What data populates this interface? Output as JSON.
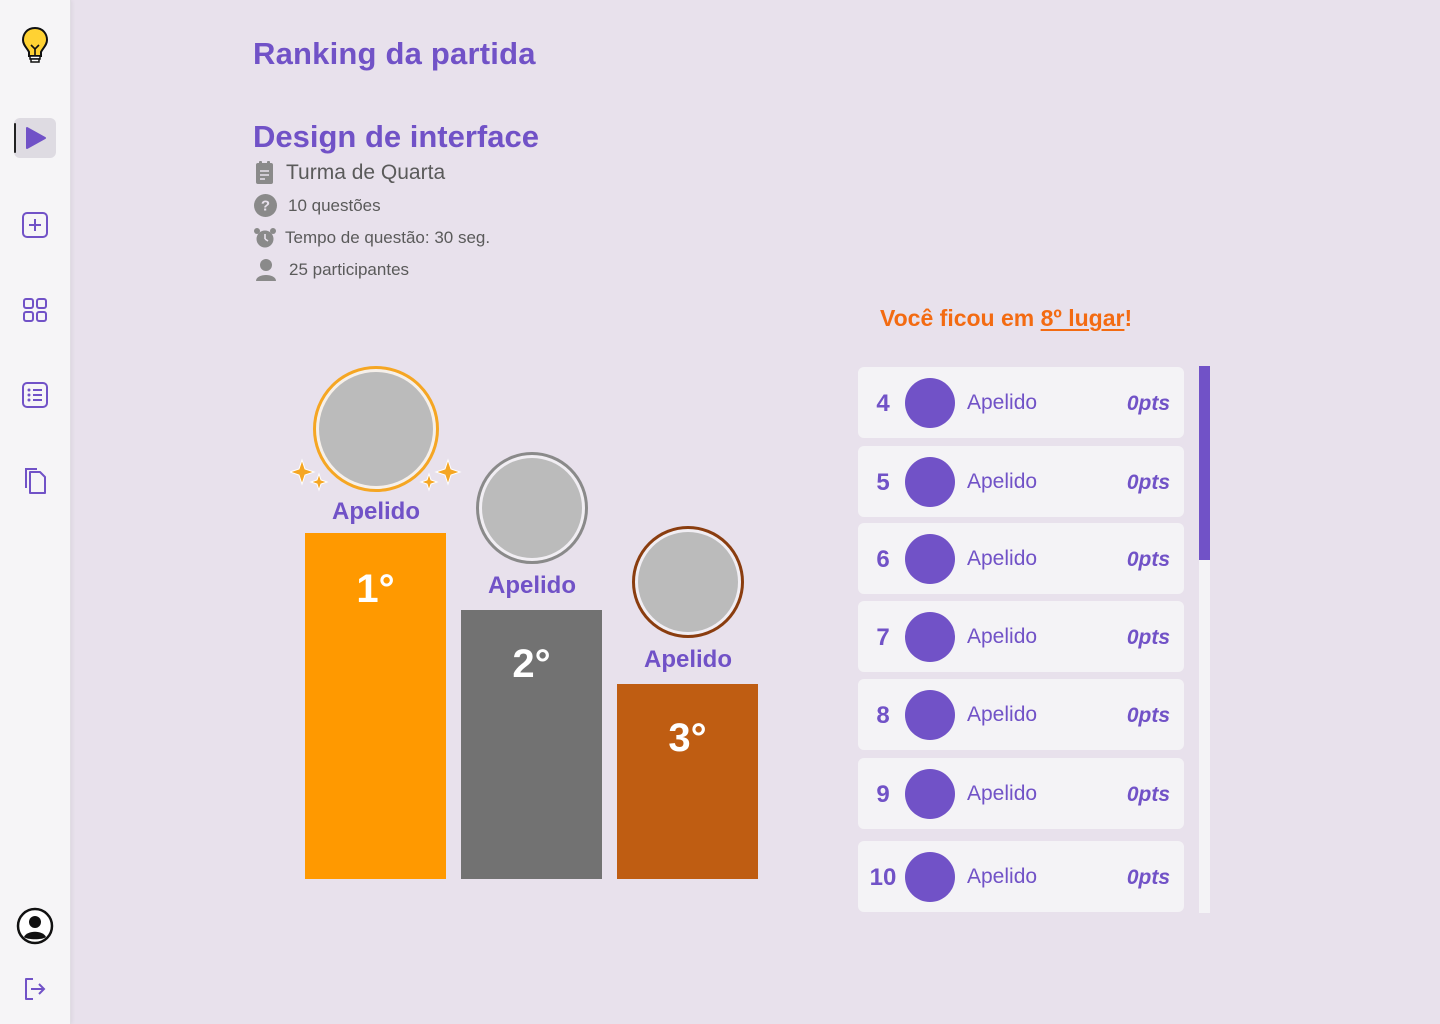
{
  "sidebar": {
    "items": [
      {
        "name": "logo-lightbulb-icon"
      },
      {
        "name": "play-icon",
        "active": true
      },
      {
        "name": "add-icon"
      },
      {
        "name": "grid-icon"
      },
      {
        "name": "list-icon"
      },
      {
        "name": "documents-icon"
      },
      {
        "name": "profile-icon"
      },
      {
        "name": "logout-icon"
      }
    ]
  },
  "header": {
    "title": "Ranking da partida"
  },
  "quiz": {
    "title": "Design de interface",
    "class_name": "Turma de Quarta",
    "questions": "10 questões",
    "time": "Tempo de questão: 30 seg.",
    "participants": "25 participantes"
  },
  "podium": [
    {
      "place": "1°",
      "name": "Apelido",
      "color": "#ff9900",
      "ring": "#f5a623"
    },
    {
      "place": "2°",
      "name": "Apelido",
      "color": "#727272",
      "ring": "#8a8a8a"
    },
    {
      "place": "3°",
      "name": "Apelido",
      "color": "#bf5d12",
      "ring": "#8a3d0f"
    }
  ],
  "result": {
    "prefix": "Você ficou em ",
    "highlight": "8º lugar",
    "suffix": "!"
  },
  "ranking": [
    {
      "pos": "4",
      "name": "Apelido",
      "pts": "0pts"
    },
    {
      "pos": "5",
      "name": "Apelido",
      "pts": "0pts"
    },
    {
      "pos": "6",
      "name": "Apelido",
      "pts": "0pts"
    },
    {
      "pos": "7",
      "name": "Apelido",
      "pts": "0pts"
    },
    {
      "pos": "8",
      "name": "Apelido",
      "pts": "0pts"
    },
    {
      "pos": "9",
      "name": "Apelido",
      "pts": "0pts"
    },
    {
      "pos": "10",
      "name": "Apelido",
      "pts": "0pts"
    }
  ],
  "colors": {
    "accent": "#7152c7",
    "orange": "#f36b12",
    "background": "#e8e1ec"
  }
}
